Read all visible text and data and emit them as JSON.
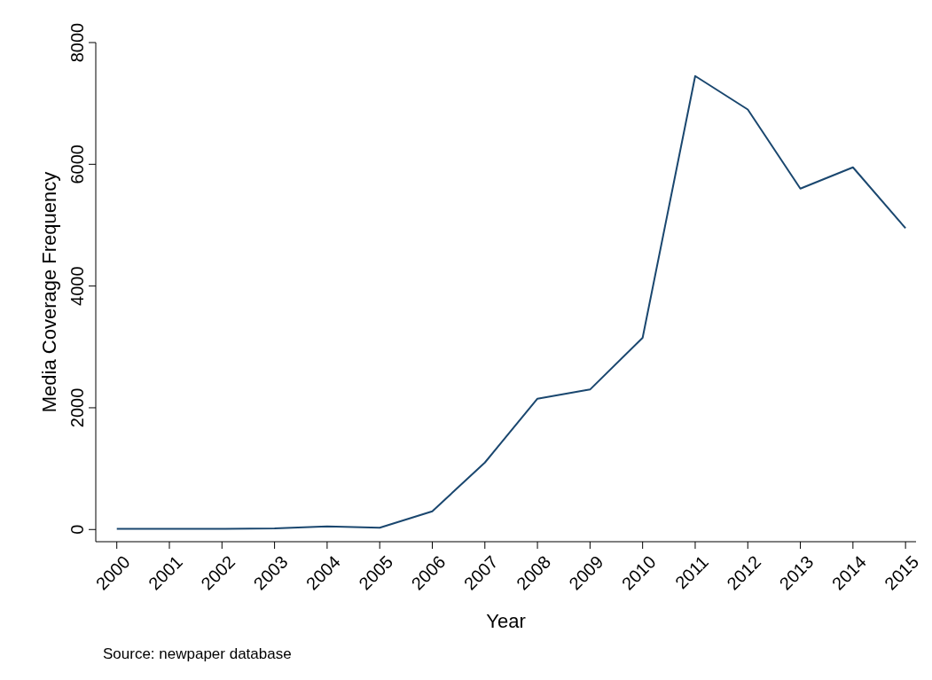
{
  "chart_data": {
    "type": "line",
    "xlabel": "Year",
    "ylabel": "Media Coverage Frequency",
    "x": [
      2000,
      2001,
      2002,
      2003,
      2004,
      2005,
      2006,
      2007,
      2008,
      2009,
      2010,
      2011,
      2012,
      2013,
      2014,
      2015
    ],
    "series": [
      {
        "color": "#1a476f",
        "values": [
          10,
          10,
          10,
          20,
          50,
          30,
          300,
          1100,
          2150,
          2300,
          3150,
          7450,
          6900,
          5600,
          5950,
          4950
        ]
      }
    ],
    "xlim": [
      1999.6,
      2015.2
    ],
    "xticks": [
      2000,
      2001,
      2002,
      2003,
      2004,
      2005,
      2006,
      2007,
      2008,
      2009,
      2010,
      2011,
      2012,
      2013,
      2014,
      2015
    ],
    "ylim": [
      -200,
      8000
    ],
    "yticks": [
      0,
      2000,
      4000,
      6000,
      8000
    ],
    "grid": false,
    "marker": "none",
    "line_style": "solid",
    "annotations": [
      "Source: newpaper database"
    ]
  }
}
